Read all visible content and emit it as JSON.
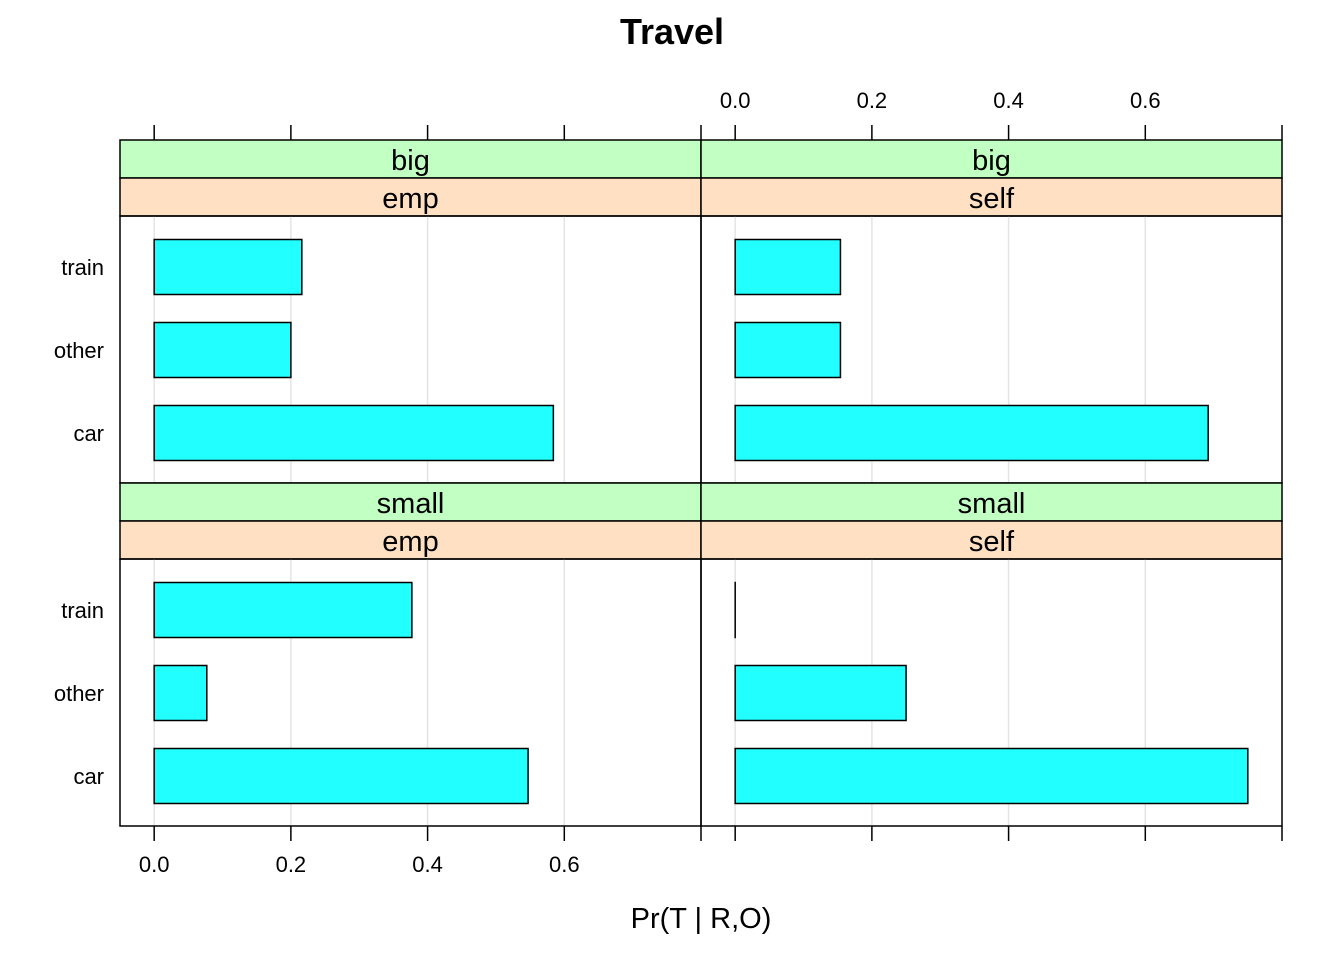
{
  "chart_data": {
    "type": "bar",
    "orientation": "horizontal",
    "title": "Travel",
    "xlabel": "Pr(T | R,O)",
    "ylabel": "",
    "xlim": [
      -0.05,
      0.8
    ],
    "x_ticks": [
      0.0,
      0.2,
      0.4,
      0.6
    ],
    "x_tick_labels": [
      "0.0",
      "0.2",
      "0.4",
      "0.6"
    ],
    "categories": [
      "train",
      "other",
      "car"
    ],
    "grid": "vertical",
    "colors": {
      "bar_fill": "#22ffff",
      "strip_outer": "#c2ffc2",
      "strip_inner": "#ffe0c2",
      "grid": "#e4e4e4",
      "border": "#000000"
    },
    "panels": [
      {
        "strip_outer": "big",
        "strip_inner": "emp",
        "values": {
          "train": 0.216,
          "other": 0.2,
          "car": 0.584
        }
      },
      {
        "strip_outer": "big",
        "strip_inner": "self",
        "values": {
          "train": 0.154,
          "other": 0.154,
          "car": 0.692
        }
      },
      {
        "strip_outer": "small",
        "strip_inner": "emp",
        "values": {
          "train": 0.377,
          "other": 0.077,
          "car": 0.547
        }
      },
      {
        "strip_outer": "small",
        "strip_inner": "self",
        "values": {
          "train": 0.0,
          "other": 0.25,
          "car": 0.75
        }
      }
    ]
  }
}
